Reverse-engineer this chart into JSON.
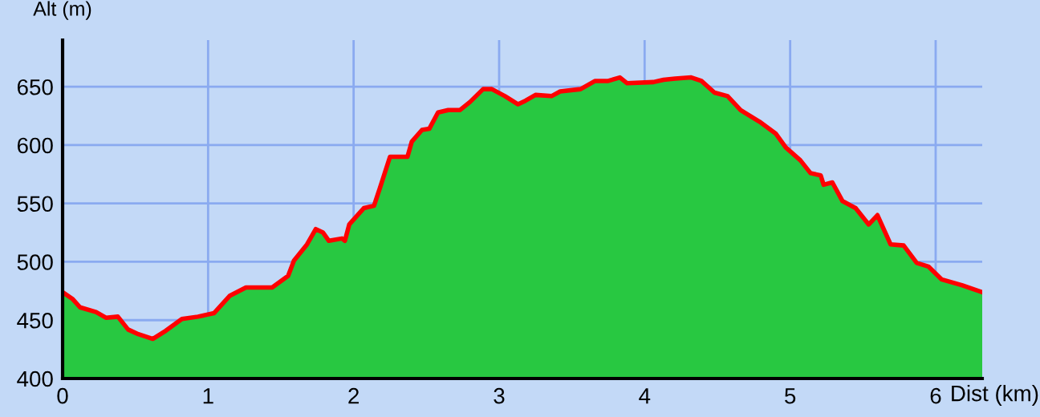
{
  "chart_data": {
    "type": "area",
    "xlabel": "Dist (km)",
    "ylabel": "Alt (m)",
    "x": [
      0,
      0.07,
      0.12,
      0.23,
      0.3,
      0.38,
      0.45,
      0.52,
      0.62,
      0.71,
      0.82,
      0.93,
      1.04,
      1.15,
      1.26,
      1.44,
      1.55,
      1.59,
      1.68,
      1.74,
      1.79,
      1.83,
      1.92,
      1.94,
      1.97,
      2.07,
      2.14,
      2.18,
      2.25,
      2.3,
      2.37,
      2.4,
      2.47,
      2.52,
      2.58,
      2.65,
      2.73,
      2.8,
      2.89,
      2.95,
      3.04,
      3.13,
      3.18,
      3.25,
      3.36,
      3.42,
      3.56,
      3.66,
      3.75,
      3.83,
      3.88,
      4.06,
      4.13,
      4.21,
      4.32,
      4.39,
      4.48,
      4.57,
      4.66,
      4.79,
      4.9,
      4.97,
      5.07,
      5.14,
      5.21,
      5.23,
      5.29,
      5.36,
      5.45,
      5.54,
      5.6,
      5.69,
      5.78,
      5.87,
      5.95,
      6.04,
      6.18,
      6.32
    ],
    "series": [
      {
        "color": "#28c841",
        "values": [
          474,
          468,
          461,
          457,
          452,
          453,
          442,
          438,
          434,
          441,
          451,
          453,
          456,
          471,
          478,
          478,
          488,
          501,
          515,
          528,
          525,
          518,
          520,
          518,
          532,
          546,
          548,
          563,
          590,
          590,
          590,
          603,
          613,
          614,
          628,
          630,
          630,
          637,
          648,
          648,
          642,
          635,
          638,
          643,
          642,
          646,
          648,
          655,
          655,
          658,
          653,
          654,
          656,
          657,
          658,
          655,
          645,
          642,
          630,
          620,
          610,
          598,
          587,
          576,
          574,
          566,
          568,
          552,
          546,
          532,
          540,
          515,
          514,
          499,
          496,
          485,
          480,
          474
        ]
      },
      {
        "type": "line",
        "color": "#ff0000",
        "values": [
          474,
          468,
          461,
          457,
          452,
          453,
          442,
          438,
          434,
          441,
          451,
          453,
          456,
          471,
          478,
          478,
          488,
          501,
          515,
          528,
          525,
          518,
          520,
          518,
          532,
          546,
          548,
          563,
          590,
          590,
          590,
          603,
          613,
          614,
          628,
          630,
          630,
          637,
          648,
          648,
          642,
          635,
          638,
          643,
          642,
          646,
          648,
          655,
          655,
          658,
          653,
          654,
          656,
          657,
          658,
          655,
          645,
          642,
          630,
          620,
          610,
          598,
          587,
          576,
          574,
          566,
          568,
          552,
          546,
          532,
          540,
          515,
          514,
          499,
          496,
          485,
          480,
          474
        ]
      }
    ],
    "xlim": [
      0,
      6.32
    ],
    "ylim": [
      400,
      690
    ],
    "xticks": [
      0,
      1,
      2,
      3,
      4,
      5,
      6
    ],
    "yticks": [
      400,
      450,
      500,
      550,
      600,
      650
    ],
    "grid": true,
    "legend": false
  }
}
